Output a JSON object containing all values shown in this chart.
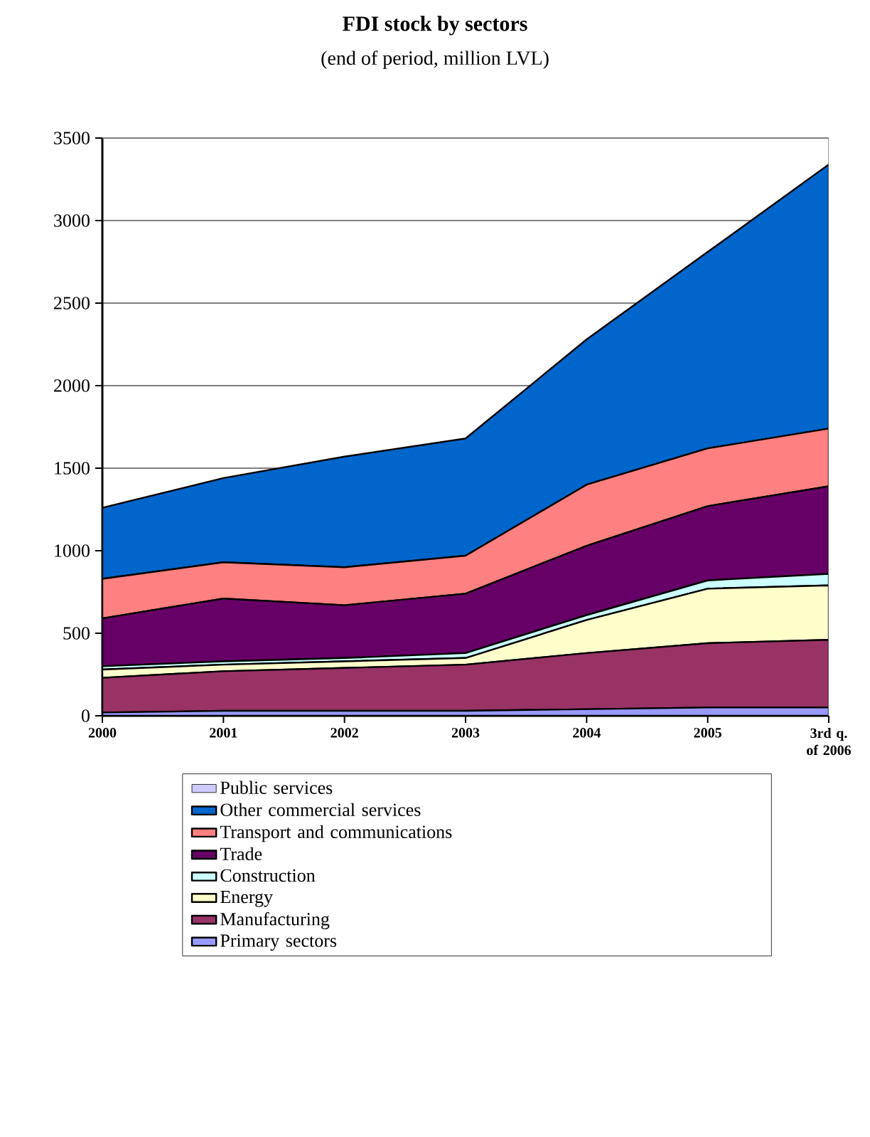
{
  "chart_data": {
    "type": "area",
    "stacked": true,
    "title": "FDI stock by sectors",
    "subtitle": "(end of period, million LVL)",
    "categories": [
      "2000",
      "2001",
      "2002",
      "2003",
      "2004",
      "2005",
      "3rd q. of 2006"
    ],
    "ylim": [
      0,
      3500
    ],
    "yticks": [
      0,
      500,
      1000,
      1500,
      2000,
      2500,
      3000,
      3500
    ],
    "grid": "y",
    "legend": "bottom",
    "series": [
      {
        "name": "Primary sectors",
        "color": "#9999ff",
        "values": [
          20,
          30,
          30,
          30,
          40,
          50,
          50
        ]
      },
      {
        "name": "Manufacturing",
        "color": "#993366",
        "values": [
          210,
          240,
          260,
          280,
          340,
          390,
          410
        ]
      },
      {
        "name": "Energy",
        "color": "#ffffcc",
        "values": [
          50,
          40,
          40,
          40,
          200,
          330,
          330
        ]
      },
      {
        "name": "Construction",
        "color": "#ccffff",
        "values": [
          20,
          20,
          20,
          30,
          30,
          50,
          70
        ]
      },
      {
        "name": "Trade",
        "color": "#660066",
        "values": [
          290,
          380,
          320,
          360,
          420,
          450,
          530
        ]
      },
      {
        "name": "Transport and communications",
        "color": "#ff8080",
        "values": [
          240,
          220,
          230,
          230,
          370,
          350,
          350
        ]
      },
      {
        "name": "Other commercial services",
        "color": "#0066cc",
        "values": [
          430,
          510,
          670,
          710,
          880,
          1190,
          1600
        ]
      },
      {
        "name": "Public services",
        "color": "#ccccff",
        "values": [
          null,
          null,
          null,
          null,
          null,
          null,
          null
        ]
      }
    ]
  }
}
